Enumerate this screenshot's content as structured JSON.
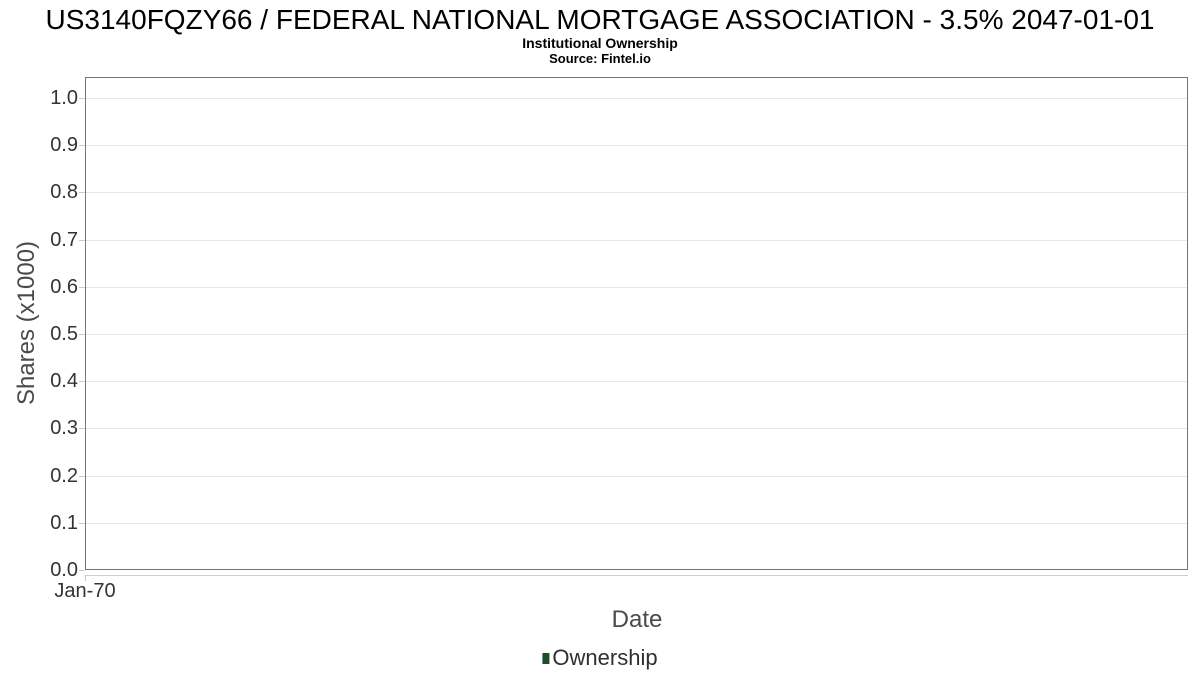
{
  "chart_data": {
    "type": "line",
    "title": "US3140FQZY66 / FEDERAL NATIONAL MORTGAGE ASSOCIATION - 3.5% 2047-01-01",
    "subtitle": "Institutional Ownership",
    "source": "Source: Fintel.io",
    "xlabel": "Date",
    "ylabel": "Shares (x1000)",
    "ylim": [
      0.0,
      1.0
    ],
    "yticks": [
      "1.0",
      "0.9",
      "0.8",
      "0.7",
      "0.6",
      "0.5",
      "0.4",
      "0.3",
      "0.2",
      "0.1",
      "0.0"
    ],
    "xticks": [
      "Jan-70"
    ],
    "xtick_positions": [
      0.0
    ],
    "grid": true,
    "plot_background": "empty (no data points plotted)",
    "legend": {
      "position": "bottom-center",
      "entries": [
        {
          "label": "Ownership",
          "color": "#1e4d26"
        }
      ]
    },
    "series": [
      {
        "name": "Ownership",
        "x": [],
        "values": []
      }
    ]
  },
  "colors": {
    "background": "#ffffff",
    "title_text": "#000000",
    "plot_border": "#757575",
    "gridline": "#e8e8e8",
    "tick_mark": "#c9c9c9",
    "axis_line": "#cfcfcf",
    "tick_label_text": "#333333",
    "axis_title_text": "#4a4a4a",
    "legend_text": "#303030",
    "legend_marker": "#1e4d26"
  }
}
